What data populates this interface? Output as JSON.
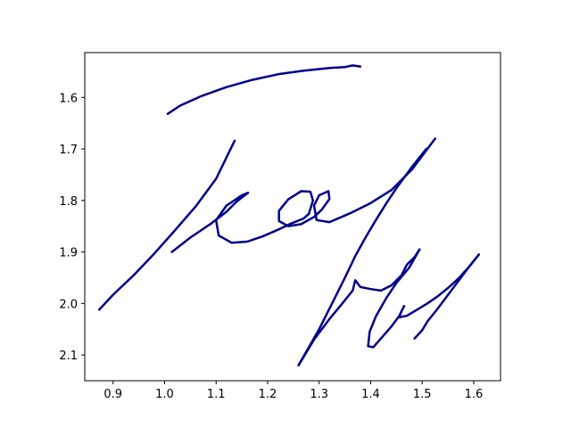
{
  "chart_data": {
    "type": "line",
    "title": "",
    "xlabel": "",
    "ylabel": "",
    "xlim": [
      0.845,
      1.652
    ],
    "ylim": [
      2.15,
      1.513
    ],
    "y_inverted": true,
    "grid": false,
    "x_ticks": [
      0.9,
      1.0,
      1.1,
      1.2,
      1.3,
      1.4,
      1.5,
      1.6
    ],
    "x_tick_labels": [
      "0.9",
      "1.0",
      "1.1",
      "1.2",
      "1.3",
      "1.4",
      "1.5",
      "1.6"
    ],
    "y_ticks": [
      1.6,
      1.7,
      1.8,
      1.9,
      2.0,
      2.1
    ],
    "y_tick_labels": [
      "1.6",
      "1.7",
      "1.8",
      "1.9",
      "2.0",
      "2.1"
    ],
    "line_color": "#00008b",
    "series": [
      {
        "x": [
          1.006,
          1.03,
          1.07,
          1.12,
          1.17,
          1.22,
          1.27,
          1.32,
          1.35,
          1.365,
          1.38
        ],
        "y": [
          1.632,
          1.616,
          1.598,
          1.58,
          1.566,
          1.555,
          1.548,
          1.543,
          1.541,
          1.538,
          1.54
        ]
      },
      {
        "x": [
          0.873,
          0.9,
          0.94,
          0.98,
          1.02,
          1.06,
          1.1,
          1.136
        ],
        "y": [
          2.012,
          1.983,
          1.945,
          1.903,
          1.858,
          1.812,
          1.758,
          1.684
        ]
      },
      {
        "x": [
          1.014,
          1.05,
          1.09,
          1.12,
          1.14,
          1.162,
          1.15,
          1.12,
          1.1,
          1.105,
          1.13,
          1.16,
          1.19,
          1.22,
          1.245,
          1.27,
          1.28
        ],
        "y": [
          1.9,
          1.872,
          1.845,
          1.822,
          1.802,
          1.785,
          1.79,
          1.81,
          1.838,
          1.868,
          1.882,
          1.88,
          1.87,
          1.857,
          1.845,
          1.835,
          1.826
        ]
      },
      {
        "x": [
          1.28,
          1.288,
          1.283,
          1.265,
          1.24,
          1.222,
          1.222,
          1.24,
          1.265,
          1.29,
          1.305,
          1.32,
          1.318,
          1.3,
          1.29,
          1.295,
          1.32
        ],
        "y": [
          1.826,
          1.8,
          1.783,
          1.782,
          1.798,
          1.82,
          1.84,
          1.85,
          1.846,
          1.832,
          1.818,
          1.797,
          1.782,
          1.79,
          1.81,
          1.838,
          1.842
        ]
      },
      {
        "x": [
          1.32,
          1.36,
          1.4,
          1.44,
          1.48,
          1.525
        ],
        "y": [
          1.842,
          1.825,
          1.805,
          1.78,
          1.74,
          1.68
        ]
      },
      {
        "x": [
          1.508,
          1.48,
          1.45,
          1.43,
          1.41,
          1.39,
          1.37,
          1.35,
          1.33,
          1.3,
          1.26
        ],
        "y": [
          1.7,
          1.735,
          1.776,
          1.806,
          1.838,
          1.872,
          1.908,
          1.95,
          1.99,
          2.05,
          2.12
        ]
      },
      {
        "x": [
          1.26,
          1.29,
          1.32,
          1.345,
          1.365,
          1.37,
          1.38,
          1.4,
          1.42,
          1.44,
          1.46,
          1.47,
          1.485,
          1.495
        ],
        "y": [
          2.12,
          2.07,
          2.03,
          2.0,
          1.975,
          1.955,
          1.968,
          1.972,
          1.975,
          1.965,
          1.945,
          1.925,
          1.91,
          1.895
        ]
      },
      {
        "x": [
          1.495,
          1.475,
          1.45,
          1.43,
          1.41,
          1.398,
          1.395,
          1.405,
          1.42,
          1.44,
          1.455,
          1.465,
          1.46,
          1.455,
          1.47,
          1.49,
          1.51,
          1.53,
          1.55,
          1.57,
          1.59,
          1.61
        ],
        "y": [
          1.895,
          1.93,
          1.96,
          1.99,
          2.025,
          2.055,
          2.083,
          2.085,
          2.068,
          2.045,
          2.025,
          2.005,
          2.015,
          2.027,
          2.024,
          2.012,
          2.0,
          1.986,
          1.97,
          1.952,
          1.93,
          1.905
        ]
      },
      {
        "x": [
          1.61,
          1.59,
          1.56,
          1.53,
          1.51,
          1.5,
          1.485
        ],
        "y": [
          1.905,
          1.93,
          1.97,
          2.01,
          2.035,
          2.052,
          2.068
        ]
      }
    ]
  }
}
